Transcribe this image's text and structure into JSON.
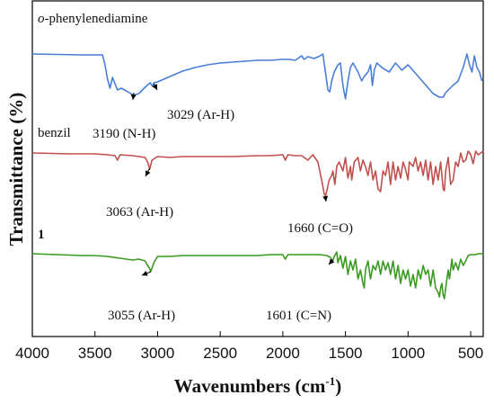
{
  "chart_data": {
    "type": "line",
    "xlabel": "Wavenumbers (cm",
    "xlabel_sup": "-1",
    "xlabel_close": ")",
    "ylabel": "Transmittance (%)",
    "xlim": [
      4000,
      400
    ],
    "x_reversed": true,
    "xticks": [
      4000,
      3500,
      3000,
      2500,
      2000,
      1500,
      1000,
      500
    ],
    "grid": false,
    "series": [
      {
        "name": "o-phenylenediamine",
        "name_italic": "o",
        "name_rest": "-phenylenediamine",
        "color": "#4a7fd8",
        "points": [
          [
            4000,
            60
          ],
          [
            3600,
            61
          ],
          [
            3440,
            61
          ],
          [
            3420,
            72
          ],
          [
            3400,
            88
          ],
          [
            3380,
            98
          ],
          [
            3360,
            86
          ],
          [
            3340,
            93
          ],
          [
            3320,
            100
          ],
          [
            3290,
            98
          ],
          [
            3250,
            101
          ],
          [
            3190,
            106
          ],
          [
            3150,
            104
          ],
          [
            3100,
            97
          ],
          [
            3060,
            92
          ],
          [
            3040,
            96
          ],
          [
            3029,
            92
          ],
          [
            3000,
            91
          ],
          [
            2950,
            88
          ],
          [
            2900,
            85
          ],
          [
            2850,
            82
          ],
          [
            2800,
            79
          ],
          [
            2700,
            75
          ],
          [
            2600,
            72
          ],
          [
            2500,
            70
          ],
          [
            2400,
            69
          ],
          [
            2300,
            68
          ],
          [
            2200,
            67
          ],
          [
            2100,
            67
          ],
          [
            2000,
            66
          ],
          [
            1950,
            66
          ],
          [
            1900,
            67
          ],
          [
            1850,
            62
          ],
          [
            1830,
            66
          ],
          [
            1800,
            63
          ],
          [
            1750,
            65
          ],
          [
            1700,
            62
          ],
          [
            1680,
            60
          ],
          [
            1660,
            80
          ],
          [
            1640,
            100
          ],
          [
            1625,
            102
          ],
          [
            1610,
            90
          ],
          [
            1590,
            80
          ],
          [
            1560,
            72
          ],
          [
            1540,
            70
          ],
          [
            1520,
            95
          ],
          [
            1500,
            110
          ],
          [
            1480,
            90
          ],
          [
            1460,
            75
          ],
          [
            1440,
            70
          ],
          [
            1400,
            80
          ],
          [
            1370,
            90
          ],
          [
            1350,
            85
          ],
          [
            1320,
            80
          ],
          [
            1300,
            72
          ],
          [
            1285,
            95
          ],
          [
            1270,
            78
          ],
          [
            1250,
            70
          ],
          [
            1200,
            76
          ],
          [
            1150,
            80
          ],
          [
            1100,
            70
          ],
          [
            1050,
            78
          ],
          [
            1000,
            72
          ],
          [
            950,
            80
          ],
          [
            900,
            88
          ],
          [
            850,
            96
          ],
          [
            800,
            104
          ],
          [
            750,
            108
          ],
          [
            720,
            108
          ],
          [
            700,
            103
          ],
          [
            650,
            96
          ],
          [
            600,
            90
          ],
          [
            560,
            75
          ],
          [
            530,
            60
          ],
          [
            510,
            72
          ],
          [
            490,
            80
          ],
          [
            470,
            62
          ],
          [
            450,
            75
          ],
          [
            430,
            80
          ],
          [
            410,
            90
          ]
        ]
      },
      {
        "name": "benzil",
        "color": "#c0504d",
        "points": [
          [
            4000,
            170
          ],
          [
            3700,
            171
          ],
          [
            3500,
            171
          ],
          [
            3400,
            172
          ],
          [
            3340,
            173
          ],
          [
            3320,
            178
          ],
          [
            3300,
            172
          ],
          [
            3200,
            173
          ],
          [
            3100,
            175
          ],
          [
            3080,
            180
          ],
          [
            3063,
            188
          ],
          [
            3045,
            178
          ],
          [
            3000,
            174
          ],
          [
            2900,
            175
          ],
          [
            2800,
            174
          ],
          [
            2600,
            174
          ],
          [
            2400,
            174
          ],
          [
            2200,
            173
          ],
          [
            2100,
            173
          ],
          [
            2000,
            172
          ],
          [
            1980,
            178
          ],
          [
            1960,
            172
          ],
          [
            1900,
            173
          ],
          [
            1850,
            173
          ],
          [
            1800,
            178
          ],
          [
            1760,
            172
          ],
          [
            1720,
            180
          ],
          [
            1690,
            200
          ],
          [
            1670,
            215
          ],
          [
            1660,
            218
          ],
          [
            1645,
            210
          ],
          [
            1630,
            200
          ],
          [
            1610,
            195
          ],
          [
            1600,
            190
          ],
          [
            1585,
            205
          ],
          [
            1570,
            185
          ],
          [
            1550,
            180
          ],
          [
            1520,
            190
          ],
          [
            1500,
            175
          ],
          [
            1480,
            198
          ],
          [
            1460,
            185
          ],
          [
            1450,
            200
          ],
          [
            1430,
            180
          ],
          [
            1400,
            175
          ],
          [
            1380,
            190
          ],
          [
            1360,
            178
          ],
          [
            1340,
            185
          ],
          [
            1320,
            195
          ],
          [
            1300,
            180
          ],
          [
            1280,
            200
          ],
          [
            1260,
            190
          ],
          [
            1240,
            210
          ],
          [
            1220,
            213
          ],
          [
            1200,
            190
          ],
          [
            1180,
            195
          ],
          [
            1160,
            180
          ],
          [
            1140,
            205
          ],
          [
            1120,
            180
          ],
          [
            1100,
            200
          ],
          [
            1080,
            185
          ],
          [
            1060,
            198
          ],
          [
            1040,
            180
          ],
          [
            1020,
            188
          ],
          [
            1000,
            200
          ],
          [
            990,
            180
          ],
          [
            960,
            185
          ],
          [
            940,
            175
          ],
          [
            920,
            190
          ],
          [
            900,
            180
          ],
          [
            880,
            195
          ],
          [
            860,
            178
          ],
          [
            840,
            200
          ],
          [
            820,
            180
          ],
          [
            800,
            205
          ],
          [
            780,
            185
          ],
          [
            760,
            200
          ],
          [
            740,
            180
          ],
          [
            720,
            210
          ],
          [
            710,
            212
          ],
          [
            700,
            190
          ],
          [
            680,
            175
          ],
          [
            660,
            205
          ],
          [
            640,
            200
          ],
          [
            620,
            180
          ],
          [
            600,
            185
          ],
          [
            580,
            170
          ],
          [
            560,
            180
          ],
          [
            540,
            178
          ],
          [
            520,
            168
          ],
          [
            500,
            172
          ],
          [
            480,
            182
          ],
          [
            460,
            168
          ],
          [
            440,
            172
          ],
          [
            420,
            170
          ],
          [
            400,
            168
          ]
        ]
      },
      {
        "name": "1",
        "color": "#3a9a22",
        "points": [
          [
            4000,
            282
          ],
          [
            3800,
            283
          ],
          [
            3600,
            284
          ],
          [
            3500,
            284
          ],
          [
            3400,
            285
          ],
          [
            3300,
            287
          ],
          [
            3200,
            289
          ],
          [
            3150,
            288
          ],
          [
            3100,
            290
          ],
          [
            3080,
            295
          ],
          [
            3065,
            298
          ],
          [
            3055,
            302
          ],
          [
            3040,
            296
          ],
          [
            3030,
            292
          ],
          [
            3000,
            285
          ],
          [
            2900,
            285
          ],
          [
            2800,
            284
          ],
          [
            2600,
            284
          ],
          [
            2400,
            284
          ],
          [
            2200,
            284
          ],
          [
            2100,
            283
          ],
          [
            2000,
            283
          ],
          [
            1980,
            288
          ],
          [
            1960,
            283
          ],
          [
            1900,
            283
          ],
          [
            1850,
            283
          ],
          [
            1800,
            283
          ],
          [
            1750,
            283
          ],
          [
            1700,
            283
          ],
          [
            1650,
            284
          ],
          [
            1620,
            286
          ],
          [
            1601,
            290
          ],
          [
            1590,
            285
          ],
          [
            1570,
            280
          ],
          [
            1560,
            292
          ],
          [
            1540,
            284
          ],
          [
            1520,
            298
          ],
          [
            1500,
            285
          ],
          [
            1480,
            305
          ],
          [
            1460,
            290
          ],
          [
            1440,
            300
          ],
          [
            1420,
            288
          ],
          [
            1400,
            310
          ],
          [
            1380,
            300
          ],
          [
            1360,
            315
          ],
          [
            1350,
            320
          ],
          [
            1340,
            300
          ],
          [
            1320,
            290
          ],
          [
            1300,
            310
          ],
          [
            1280,
            295
          ],
          [
            1260,
            300
          ],
          [
            1240,
            290
          ],
          [
            1220,
            305
          ],
          [
            1200,
            290
          ],
          [
            1180,
            300
          ],
          [
            1160,
            292
          ],
          [
            1140,
            305
          ],
          [
            1120,
            290
          ],
          [
            1100,
            310
          ],
          [
            1080,
            295
          ],
          [
            1060,
            315
          ],
          [
            1040,
            300
          ],
          [
            1020,
            310
          ],
          [
            1000,
            300
          ],
          [
            980,
            318
          ],
          [
            960,
            305
          ],
          [
            940,
            320
          ],
          [
            920,
            300
          ],
          [
            900,
            310
          ],
          [
            880,
            295
          ],
          [
            860,
            305
          ],
          [
            840,
            300
          ],
          [
            820,
            318
          ],
          [
            800,
            300
          ],
          [
            780,
            320
          ],
          [
            760,
            325
          ],
          [
            750,
            330
          ],
          [
            740,
            320
          ],
          [
            730,
            315
          ],
          [
            720,
            328
          ],
          [
            710,
            332
          ],
          [
            700,
            320
          ],
          [
            690,
            310
          ],
          [
            680,
            300
          ],
          [
            670,
            310
          ],
          [
            660,
            300
          ],
          [
            650,
            288
          ],
          [
            640,
            300
          ],
          [
            620,
            292
          ],
          [
            600,
            300
          ],
          [
            580,
            288
          ],
          [
            560,
            295
          ],
          [
            540,
            290
          ],
          [
            520,
            284
          ],
          [
            500,
            283
          ],
          [
            480,
            283
          ],
          [
            460,
            283
          ],
          [
            440,
            282
          ],
          [
            420,
            282
          ],
          [
            400,
            282
          ]
        ]
      }
    ],
    "annotations": [
      {
        "text": "3190 (N-H)",
        "x": 3190
      },
      {
        "text": "3029 (Ar-H)",
        "x": 3029
      },
      {
        "text": "3063 (Ar-H)",
        "x": 3063
      },
      {
        "text": "1660 (C=O)",
        "x": 1660
      },
      {
        "text": "3055 (Ar-H)",
        "x": 3055
      },
      {
        "text": "1601 (C=N)",
        "x": 1601
      }
    ]
  }
}
